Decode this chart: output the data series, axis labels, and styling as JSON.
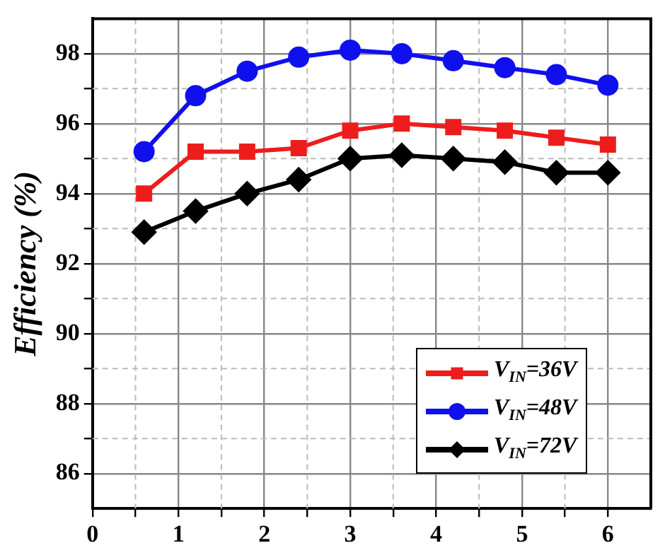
{
  "chart_data": {
    "type": "line",
    "ylabel": "Efficiency (%)",
    "x": [
      0.6,
      1.2,
      1.8,
      2.4,
      3.0,
      3.6,
      4.2,
      4.8,
      5.4,
      6.0
    ],
    "series": [
      {
        "name": "V$_{IN}$=36V",
        "color": "#ee1c1c",
        "marker": "square",
        "values": [
          94.0,
          95.2,
          95.2,
          95.3,
          95.8,
          96.0,
          95.9,
          95.8,
          95.6,
          95.4
        ]
      },
      {
        "name": "V$_{IN}$=48V",
        "color": "#1010ee",
        "marker": "circle",
        "values": [
          95.2,
          96.8,
          97.5,
          97.9,
          98.1,
          98.0,
          97.8,
          97.6,
          97.4,
          97.1
        ]
      },
      {
        "name": "V$_{IN}$=72V",
        "color": "#000000",
        "marker": "diamond",
        "values": [
          92.9,
          93.5,
          94.0,
          94.4,
          95.0,
          95.1,
          95.0,
          94.9,
          94.6,
          94.6
        ]
      }
    ],
    "xlim": [
      0,
      6.5
    ],
    "xticks": [
      0,
      {
        "value": 0.5,
        "label": null
      },
      1,
      {
        "value": 1.5,
        "label": null
      },
      2,
      {
        "value": 2.5,
        "label": null
      },
      3,
      {
        "value": 3.5,
        "label": null
      },
      4,
      {
        "value": 4.5,
        "label": null
      },
      5,
      {
        "value": 5.5,
        "label": null
      },
      6
    ],
    "ylim": [
      85,
      99
    ],
    "yticks": [
      86,
      {
        "value": 87,
        "label": null
      },
      88,
      {
        "value": 89,
        "label": null
      },
      90,
      {
        "value": 91,
        "label": null
      },
      92,
      {
        "value": 93,
        "label": null
      },
      94,
      {
        "value": 95,
        "label": null
      },
      96,
      {
        "value": 97,
        "label": null
      },
      98
    ],
    "grid": true,
    "legend": "bottom right",
    "line_style": "solid"
  }
}
